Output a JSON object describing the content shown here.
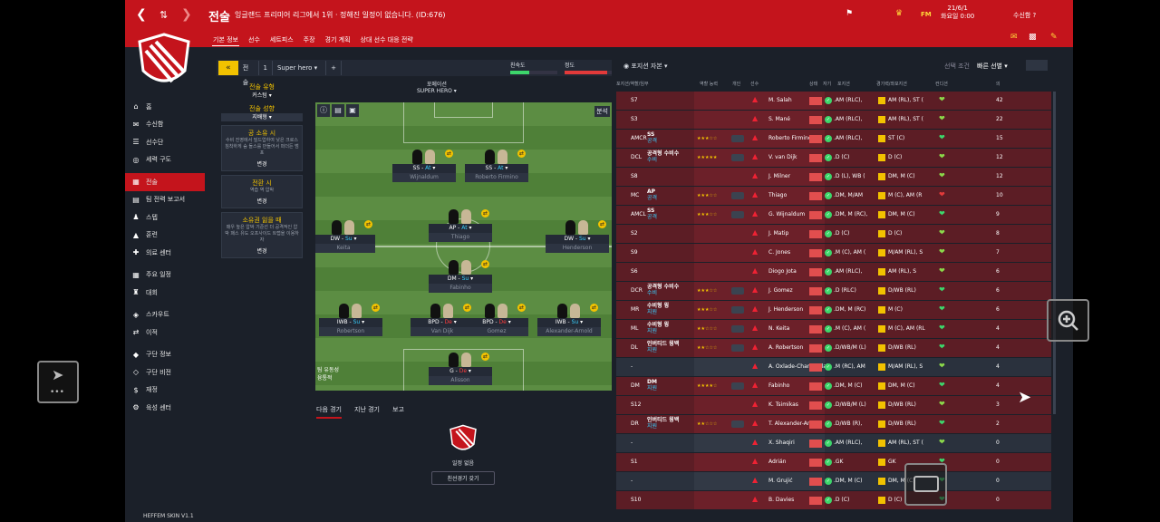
{
  "header": {
    "title": "전술",
    "subtitle": "잉글랜드 프리미어 리그에서 1위 · 정해진 일정이 없습니다. (ID:676)",
    "date": "21/6/1",
    "day": "화요일 0:00",
    "inbox": "수신함",
    "nav_back": "<",
    "nav_fwd": ">",
    "brand": "FM"
  },
  "tabs": [
    "기본 정보",
    "선수",
    "세트피스",
    "주장",
    "경기 계획",
    "상대 선수 대응 전략"
  ],
  "sidebar": [
    {
      "label": "홈",
      "icon": "home"
    },
    {
      "label": "수신함",
      "icon": "inbox"
    },
    {
      "label": "선수단",
      "icon": "squad"
    },
    {
      "label": "세력 구도",
      "icon": "dynamics"
    },
    {
      "label": "전술",
      "icon": "tactics"
    },
    {
      "label": "팀 전력 보고서",
      "icon": "report"
    },
    {
      "label": "스텝",
      "icon": "staff"
    },
    {
      "label": "훈련",
      "icon": "training"
    },
    {
      "label": "의료 센터",
      "icon": "medical"
    },
    {
      "label": "주요 일정",
      "icon": "schedule"
    },
    {
      "label": "대회",
      "icon": "competitions"
    },
    {
      "label": "스카우트",
      "icon": "scouting"
    },
    {
      "label": "이적",
      "icon": "transfers"
    },
    {
      "label": "구단 정보",
      "icon": "club-info"
    },
    {
      "label": "구단 비전",
      "icon": "vision"
    },
    {
      "label": "재정",
      "icon": "finance"
    },
    {
      "label": "육성 센터",
      "icon": "development"
    }
  ],
  "skin": "HEFFEM SKIN V1.1",
  "toolbar": {
    "tactic_label": "전술",
    "slot": "1",
    "tactic_name": "Super hero",
    "add": "+",
    "familiarity": "친숙도",
    "mentality": "정도"
  },
  "left_panel": {
    "style_h": "전술 유형",
    "style_v": "커스텀",
    "mentality_h": "전술 성향",
    "mentality_v": "지배형",
    "in_possession_title": "공 소유 시",
    "in_possession_text": "수비 진영에서 빌드업하여 낮은 크로스 침착하게 숨 돌스를 만들어서 퍼더든 범포",
    "transition_title": "전환 시",
    "transition_text": "역습 역 압박",
    "out_possession_title": "소유권 잃을 때",
    "out_possession_text": "매우 높은 압박 기준선 더 공격적인 압박 패스 유도 오프사이드 트랩을 이용하자",
    "change": "변경"
  },
  "pitch": {
    "formation_label": "포메이션",
    "formation": "SUPER HERO",
    "wing_label": "팀 유동성",
    "wing_value": "융통적",
    "analysis": "분석"
  },
  "players": [
    {
      "role": "SS",
      "duty": "At",
      "name": "Wijnaldum"
    },
    {
      "role": "SS",
      "duty": "At",
      "name": "Roberto Firmino"
    },
    {
      "role": "DW",
      "duty": "Su",
      "name": "Keita"
    },
    {
      "role": "AP",
      "duty": "At",
      "name": "Thiago"
    },
    {
      "role": "DW",
      "duty": "Su",
      "name": "Henderson"
    },
    {
      "role": "DM",
      "duty": "Su",
      "name": "Fabinho"
    },
    {
      "role": "IWB",
      "duty": "Su",
      "name": "Robertson"
    },
    {
      "role": "BPD",
      "duty": "De",
      "name": "Van Dijk"
    },
    {
      "role": "BPD",
      "duty": "De",
      "name": "Gomez"
    },
    {
      "role": "IWB",
      "duty": "Su",
      "name": "Alexander-Arnold"
    },
    {
      "role": "G",
      "duty": "De",
      "name": "Alisson"
    }
  ],
  "lower": {
    "tabs": [
      "다음 경기",
      "지난 경기",
      "보고"
    ],
    "no_match": "일정 없음",
    "btn": "친선경기 갖기"
  },
  "right": {
    "view": "포지션 자본",
    "filter": "선택 조건",
    "quick": "빠른 선별",
    "cols": [
      "포지션/역할/임무",
      "역할 능력",
      "개인",
      "선수",
      "상태",
      "자기",
      "포지션",
      "경기력/좌포지션",
      "컨디션",
      "의"
    ]
  },
  "rows": [
    {
      "pos": "S7",
      "role": "",
      "duty": "",
      "stars": "",
      "name": "M. Salah",
      "tag": "",
      "bpos": ".AM (RLC),",
      "bpos2": "AM (RL), ST (",
      "num": "42",
      "g": 0,
      "heart": "#8bd84a"
    },
    {
      "pos": "S3",
      "role": "",
      "duty": "",
      "stars": "",
      "name": "S. Mané",
      "tag": "",
      "bpos": ".AM (RLC),",
      "bpos2": "AM (RL), ST (",
      "num": "22",
      "g": 0,
      "heart": "#8bd84a"
    },
    {
      "pos": "AMCR",
      "role": "SS",
      "duty": "공격",
      "stars": "★★★☆☆",
      "name": "Roberto Firmino",
      "tag": "",
      "bpos": ".AM (RLC),",
      "bpos2": "ST (C)",
      "num": "15",
      "g": 0,
      "heart": "#3dd66b"
    },
    {
      "pos": "DCL",
      "role": "공격형 수비수",
      "duty": "수비",
      "stars": "★★★★★",
      "name": "V. van Dijk",
      "tag": "",
      "bpos": ".D (C)",
      "bpos2": "D (C)",
      "num": "12",
      "g": 0,
      "heart": "#8bd84a"
    },
    {
      "pos": "S8",
      "role": "",
      "duty": "",
      "stars": "",
      "name": "J. Milner",
      "tag": "",
      "bpos": ".D (L), WB (",
      "bpos2": "DM, M (C)",
      "num": "12",
      "g": 0,
      "heart": "#8bd84a"
    },
    {
      "pos": "MC",
      "role": "AP",
      "duty": "공격",
      "stars": "★★★☆☆",
      "name": "Thiago",
      "tag": "",
      "bpos": ".DM, M/AM",
      "bpos2": "M (C), AM (R",
      "num": "10",
      "g": 0,
      "heart": "#e23a3a"
    },
    {
      "pos": "AMCL",
      "role": "SS",
      "duty": "공격",
      "stars": "★★★☆☆",
      "name": "G. Wijnaldum",
      "tag": "",
      "bpos": ".DM, M (RC),",
      "bpos2": "DM, M (C)",
      "num": "9",
      "g": 0,
      "heart": "#3dd66b"
    },
    {
      "pos": "S2",
      "role": "",
      "duty": "",
      "stars": "",
      "name": "J. Matip",
      "tag": "",
      "bpos": ".D (C)",
      "bpos2": "D (C)",
      "num": "8",
      "g": 0,
      "heart": "#8bd84a"
    },
    {
      "pos": "S9",
      "role": "",
      "duty": "",
      "stars": "",
      "name": "C. Jones",
      "tag": "",
      "bpos": ".M (C), AM (",
      "bpos2": "M/AM (RL), S",
      "num": "7",
      "g": 0,
      "heart": "#8bd84a"
    },
    {
      "pos": "S6",
      "role": "",
      "duty": "",
      "stars": "",
      "name": "Diogo Jota",
      "tag": "",
      "bpos": ".AM (RLC),",
      "bpos2": "AM (RL), S",
      "num": "6",
      "g": 0,
      "heart": "#8bd84a"
    },
    {
      "pos": "DCR",
      "role": "공격형 수비수",
      "duty": "수비",
      "stars": "★★★☆☆",
      "name": "J. Gomez",
      "tag": "",
      "bpos": ".D (RLC)",
      "bpos2": "D/WB (RL)",
      "num": "6",
      "g": 0,
      "heart": "#3dd66b"
    },
    {
      "pos": "MR",
      "role": "수비형 윙",
      "duty": "지원",
      "stars": "★★★☆☆",
      "name": "J. Henderson",
      "tag": "",
      "bpos": ".DM, M (RC)",
      "bpos2": "M (C)",
      "num": "6",
      "g": 0,
      "heart": "#3dd66b"
    },
    {
      "pos": "ML",
      "role": "수비형 윙",
      "duty": "지원",
      "stars": "★★☆☆☆",
      "name": "N. Keita",
      "tag": "",
      "bpos": ".M (C), AM (",
      "bpos2": "M (C), AM (RL",
      "num": "4",
      "g": 0,
      "heart": "#3dd66b"
    },
    {
      "pos": "DL",
      "role": "인버티드 윙백",
      "duty": "지원",
      "stars": "★★☆☆☆",
      "name": "A. Robertson",
      "tag": "",
      "bpos": ".D/WB/M (L)",
      "bpos2": "D/WB (RL)",
      "num": "4",
      "g": 0,
      "heart": "#3dd66b"
    },
    {
      "pos": "-",
      "role": "",
      "duty": "",
      "stars": "",
      "name": "A. Oxlade-Chamberlain",
      "tag": "",
      "bpos": ".M (RC), AM",
      "bpos2": "M/AM (RL), S",
      "num": "4",
      "g": 1,
      "heart": "#8bd84a"
    },
    {
      "pos": "DM",
      "role": "DM",
      "duty": "지원",
      "stars": "★★★★☆",
      "name": "Fabinho",
      "tag": "",
      "bpos": ".DM, M (C)",
      "bpos2": "DM, M (C)",
      "num": "4",
      "g": 0,
      "heart": "#3dd66b"
    },
    {
      "pos": "S12",
      "role": "",
      "duty": "",
      "stars": "",
      "name": "K. Tsimikas",
      "tag": "",
      "bpos": ".D/WB/M (L)",
      "bpos2": "D/WB (RL)",
      "num": "3",
      "g": 0,
      "heart": "#8bd84a"
    },
    {
      "pos": "DR",
      "role": "인버티드 윙백",
      "duty": "지원",
      "stars": "★★☆☆☆",
      "name": "T. Alexander-Arnold",
      "tag": "",
      "bpos": ".D/WB (R),",
      "bpos2": "D/WB (RL)",
      "num": "2",
      "g": 0,
      "heart": "#3dd66b"
    },
    {
      "pos": "-",
      "role": "",
      "duty": "",
      "stars": "",
      "name": "X. Shaqiri",
      "tag": "",
      "bpos": ".AM (RLC),",
      "bpos2": "AM (RL), ST (",
      "num": "0",
      "g": 1,
      "heart": "#8bd84a"
    },
    {
      "pos": "S1",
      "role": "",
      "duty": "",
      "stars": "",
      "name": "Adrián",
      "tag": "",
      "bpos": ".GK",
      "bpos2": "GK",
      "num": "0",
      "g": 0,
      "heart": "#3dd66b"
    },
    {
      "pos": "-",
      "role": "",
      "duty": "",
      "stars": "",
      "name": "M. Grujić",
      "tag": "",
      "bpos": ".DM, M (C)",
      "bpos2": "DM, M (C)",
      "num": "0",
      "g": 1,
      "heart": "#3dd66b"
    },
    {
      "pos": "S10",
      "role": "",
      "duty": "",
      "stars": "",
      "name": "B. Davies",
      "tag": "",
      "bpos": ".D (C)",
      "bpos2": "D (C)",
      "num": "0",
      "g": 0,
      "heart": "#3dd66b"
    }
  ]
}
